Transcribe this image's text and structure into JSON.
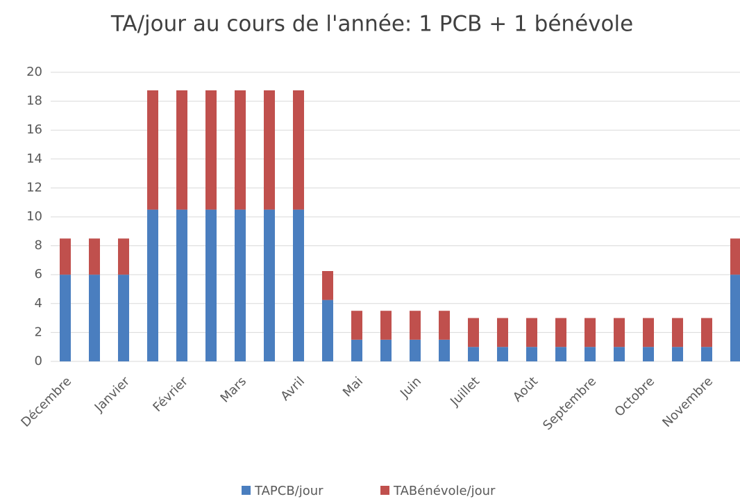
{
  "chart_data": {
    "type": "stacked_bar",
    "title": "TA/jour au cours de l'année: 1 PCB + 1 bénévole",
    "categories": [
      "Décembre",
      null,
      "Janvier",
      null,
      "Février",
      null,
      "Mars",
      null,
      "Avril",
      null,
      "Mai",
      null,
      "Juin",
      null,
      "Juillet",
      null,
      "Août",
      null,
      "Septembre",
      null,
      "Octobre",
      null,
      "Novembre",
      null
    ],
    "series": [
      {
        "name": "TAPCB/jour",
        "color": "#4a7ebf",
        "values": [
          6,
          6,
          6,
          10.5,
          10.5,
          10.5,
          10.5,
          10.5,
          10.5,
          4.25,
          1.5,
          1.5,
          1.5,
          1.5,
          1,
          1,
          1,
          1,
          1,
          1,
          1,
          1,
          1,
          6
        ]
      },
      {
        "name": "TABénévole/jour",
        "color": "#c0504d",
        "values": [
          2.5,
          2.5,
          2.5,
          8.25,
          8.25,
          8.25,
          8.25,
          8.25,
          8.25,
          2,
          2,
          2,
          2,
          2,
          2,
          2,
          2,
          2,
          2,
          2,
          2,
          2,
          2,
          2.5
        ]
      }
    ],
    "ylim": [
      0,
      20
    ],
    "yticks": [
      0,
      2,
      4,
      6,
      8,
      10,
      12,
      14,
      16,
      18,
      20
    ],
    "grid": true,
    "legend": "bottom"
  }
}
